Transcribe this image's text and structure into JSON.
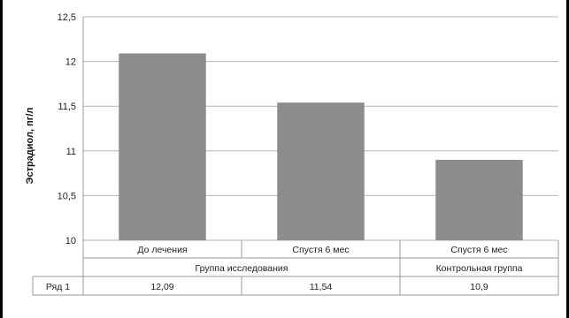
{
  "chart_data": {
    "type": "bar",
    "ylabel": "Эстрадиол, пг/л",
    "ylim": [
      10,
      12.5
    ],
    "yticks": [
      "10",
      "10,5",
      "11",
      "11,5",
      "12",
      "12,5"
    ],
    "ytick_values": [
      10,
      10.5,
      11,
      11.5,
      12,
      12.5
    ],
    "grid": true,
    "categories": [
      "До лечения",
      "Спустя 6 мес",
      "Спустя 6 мес"
    ],
    "groups": [
      {
        "label": "Группа исследования",
        "span": 2
      },
      {
        "label": "Контрольная группа",
        "span": 1
      }
    ],
    "series": [
      {
        "name": "Ряд 1",
        "values": [
          12.09,
          11.54,
          10.9
        ],
        "value_labels": [
          "12,09",
          "11,54",
          "10,9"
        ],
        "color": "#8c8c8c"
      }
    ]
  }
}
